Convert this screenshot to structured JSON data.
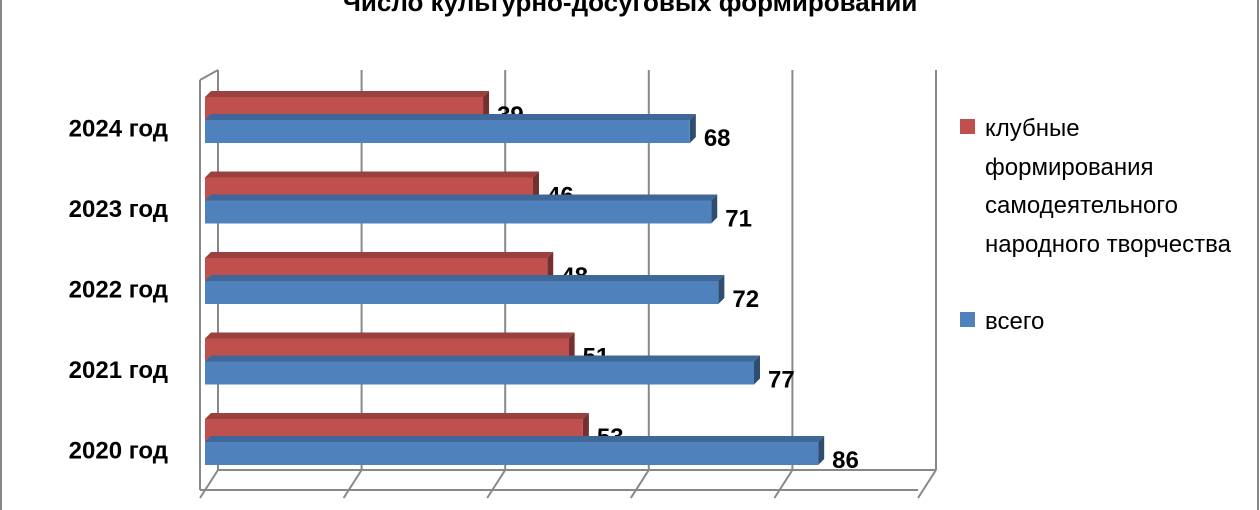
{
  "chart_data": {
    "type": "bar",
    "orientation": "horizontal",
    "title": "Число культурно-досуговых формирований",
    "categories": [
      "2024 год",
      "2023 год",
      "2022 год",
      "2021 год",
      "2020 год"
    ],
    "series": [
      {
        "name": "клубные формирования самодеятельного народного творчества",
        "color": "#c0504d",
        "values": [
          39,
          46,
          48,
          51,
          53
        ]
      },
      {
        "name": "всего",
        "color": "#4f81bd",
        "values": [
          68,
          71,
          72,
          77,
          86
        ]
      }
    ],
    "xlim": [
      0,
      100
    ],
    "xticks": [
      0,
      20,
      40,
      60,
      80,
      100
    ],
    "grid": true,
    "legend": "right"
  }
}
